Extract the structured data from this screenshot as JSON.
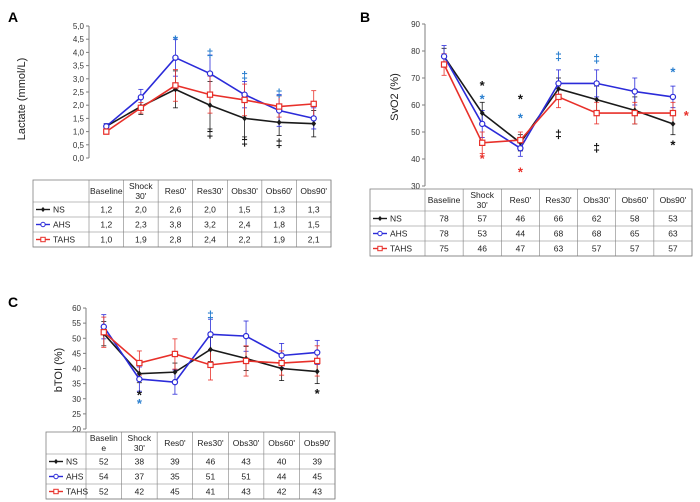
{
  "figure": {
    "colors": {
      "NS": "#1a1a1a",
      "AHS": "#2b2bd9",
      "TAHS": "#e8302a",
      "axis": "#7f7f7f",
      "grid": "#d0d0d0",
      "blue_mark": "#2a7fcf"
    }
  },
  "chart_data": [
    {
      "id": "A",
      "type": "line",
      "panel_label": "A",
      "ylabel": "Lactate (mmol/L)",
      "ylim": [
        0,
        5
      ],
      "y_ticks": [
        "0,0",
        "0,5",
        "1,0",
        "1,5",
        "2,0",
        "2,5",
        "3,0",
        "3,5",
        "4,0",
        "4,5",
        "5,0"
      ],
      "y_step": 0.5,
      "categories": [
        "Baseline",
        "Shock 30'",
        "Res0'",
        "Res30'",
        "Obs30'",
        "Obs60'",
        "Obs90'"
      ],
      "series": [
        {
          "name": "NS",
          "marker": "diamond",
          "values": [
            1.2,
            1.95,
            2.6,
            2.0,
            1.5,
            1.35,
            1.3
          ],
          "err": [
            0.1,
            0.3,
            0.7,
            0.9,
            0.7,
            0.5,
            0.5
          ],
          "table": [
            "1,2",
            "2,0",
            "2,6",
            "2,0",
            "1,5",
            "1,3",
            "1,3"
          ]
        },
        {
          "name": "AHS",
          "marker": "circle",
          "values": [
            1.2,
            2.3,
            3.8,
            3.2,
            2.4,
            1.8,
            1.5
          ],
          "err": [
            0.1,
            0.3,
            0.7,
            0.7,
            0.5,
            0.6,
            0.4
          ],
          "table": [
            "1,2",
            "2,3",
            "3,8",
            "3,2",
            "2,4",
            "1,8",
            "1,5"
          ]
        },
        {
          "name": "TAHS",
          "marker": "square",
          "values": [
            1.0,
            1.9,
            2.75,
            2.4,
            2.2,
            1.95,
            2.05
          ],
          "err": [
            0.1,
            0.2,
            0.6,
            0.7,
            0.6,
            0.4,
            0.5
          ],
          "table": [
            "1,0",
            "1,9",
            "2,8",
            "2,4",
            "2,2",
            "1,9",
            "2,1"
          ]
        }
      ],
      "annotations": [
        {
          "text": "*",
          "color": "blue",
          "x": 2,
          "y": 4.45
        },
        {
          "text": "‡",
          "color": "blue",
          "x": 3,
          "y": 3.95
        },
        {
          "text": "‡",
          "color": "blue",
          "x": 4,
          "y": 3.1
        },
        {
          "text": "‡",
          "color": "blue",
          "x": 5,
          "y": 2.45
        },
        {
          "text": "‡",
          "color": "black",
          "x": 3,
          "y": 0.9
        },
        {
          "text": "‡",
          "color": "black",
          "x": 4,
          "y": 0.6
        },
        {
          "text": "‡",
          "color": "black",
          "x": 5,
          "y": 0.55
        }
      ]
    },
    {
      "id": "B",
      "type": "line",
      "panel_label": "B",
      "ylabel": "SvO2 (%)",
      "ylim": [
        30,
        90
      ],
      "y_ticks": [
        "30",
        "40",
        "50",
        "60",
        "70",
        "80",
        "90"
      ],
      "y_step": 10,
      "categories": [
        "Baseline",
        "Shock 30'",
        "Res0'",
        "Res30'",
        "Obs30'",
        "Obs60'",
        "Obs90'"
      ],
      "series": [
        {
          "name": "NS",
          "marker": "diamond",
          "values": [
            78,
            57,
            46,
            66,
            62,
            58,
            53
          ],
          "err": [
            3,
            4,
            3,
            4,
            5,
            5,
            4
          ],
          "table": [
            "78",
            "57",
            "46",
            "66",
            "62",
            "58",
            "53"
          ]
        },
        {
          "name": "AHS",
          "marker": "circle",
          "values": [
            78,
            53,
            44,
            68,
            68,
            65,
            63
          ],
          "err": [
            4,
            5,
            3,
            5,
            5,
            5,
            4
          ],
          "table": [
            "78",
            "53",
            "44",
            "68",
            "68",
            "65",
            "63"
          ]
        },
        {
          "name": "TAHS",
          "marker": "square",
          "values": [
            75,
            46,
            47,
            63,
            57,
            57,
            57
          ],
          "err": [
            4,
            4,
            3,
            4,
            4,
            4,
            4
          ],
          "table": [
            "75",
            "46",
            "47",
            "63",
            "57",
            "57",
            "57"
          ]
        }
      ],
      "annotations": [
        {
          "text": "*",
          "color": "black",
          "x": 1,
          "y": 67
        },
        {
          "text": "*",
          "color": "blue",
          "x": 1,
          "y": 62
        },
        {
          "text": "*",
          "color": "red",
          "x": 1,
          "y": 40
        },
        {
          "text": "*",
          "color": "black",
          "x": 2,
          "y": 62
        },
        {
          "text": "*",
          "color": "blue",
          "x": 2,
          "y": 55
        },
        {
          "text": "*",
          "color": "red",
          "x": 2,
          "y": 35
        },
        {
          "text": "‡",
          "color": "blue",
          "x": 3,
          "y": 78
        },
        {
          "text": "‡",
          "color": "black",
          "x": 3,
          "y": 49
        },
        {
          "text": "‡",
          "color": "blue",
          "x": 4,
          "y": 77
        },
        {
          "text": "‡",
          "color": "black",
          "x": 4,
          "y": 44
        },
        {
          "text": "*",
          "color": "blue",
          "x": 6,
          "y": 72
        },
        {
          "text": "*",
          "color": "red",
          "x": 6.35,
          "y": 56
        },
        {
          "text": "*",
          "color": "black",
          "x": 6,
          "y": 45
        }
      ]
    },
    {
      "id": "C",
      "type": "line",
      "panel_label": "C",
      "ylabel": "bTOI (%)",
      "ylim": [
        20,
        60
      ],
      "y_ticks": [
        "20",
        "25",
        "30",
        "35",
        "40",
        "45",
        "50",
        "55",
        "60"
      ],
      "y_step": 5,
      "categories": [
        "Baseline",
        "Shock 30'",
        "Res0'",
        "Res30'",
        "Obs30'",
        "Obs60'",
        "Obs90'"
      ],
      "table_categories": [
        "Baselin e",
        "Shock 30'",
        "Res0'",
        "Res30'",
        "Obs30'",
        "Obs60'",
        "Obs90'"
      ],
      "series": [
        {
          "name": "NS",
          "marker": "diamond",
          "values": [
            51.5,
            38.3,
            38.8,
            46.3,
            43.3,
            40,
            39
          ],
          "err": [
            4,
            3,
            3,
            4,
            4,
            4,
            4
          ],
          "table": [
            "52",
            "38",
            "39",
            "46",
            "43",
            "40",
            "39"
          ]
        },
        {
          "name": "AHS",
          "marker": "circle",
          "values": [
            53.8,
            36.5,
            35.5,
            51.3,
            50.7,
            44.3,
            45.3
          ],
          "err": [
            4,
            4,
            4,
            5,
            5,
            4,
            4
          ],
          "table": [
            "54",
            "37",
            "35",
            "51",
            "51",
            "44",
            "45"
          ]
        },
        {
          "name": "TAHS",
          "marker": "square",
          "values": [
            52,
            41.8,
            44.8,
            41.2,
            42.5,
            41.8,
            42.5
          ],
          "err": [
            5,
            4,
            5,
            5,
            5,
            4,
            5
          ],
          "table": [
            "52",
            "42",
            "45",
            "41",
            "43",
            "42",
            "43"
          ]
        }
      ],
      "annotations": [
        {
          "text": "*",
          "color": "black",
          "x": 1,
          "y": 31
        },
        {
          "text": "*",
          "color": "blue",
          "x": 1,
          "y": 28.3
        },
        {
          "text": "‡",
          "color": "blue",
          "x": 3,
          "y": 57.5
        },
        {
          "text": "*",
          "color": "black",
          "x": 6,
          "y": 31.5
        }
      ]
    }
  ]
}
